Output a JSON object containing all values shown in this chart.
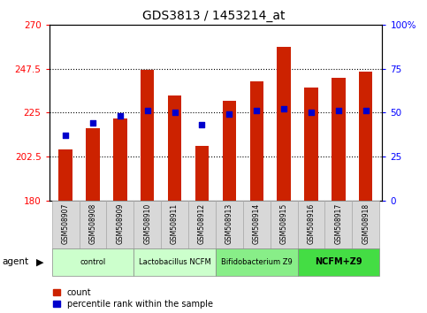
{
  "title": "GDS3813 / 1453214_at",
  "samples": [
    "GSM508907",
    "GSM508908",
    "GSM508909",
    "GSM508910",
    "GSM508911",
    "GSM508912",
    "GSM508913",
    "GSM508914",
    "GSM508915",
    "GSM508916",
    "GSM508917",
    "GSM508918"
  ],
  "counts": [
    206,
    217,
    222,
    247,
    234,
    208,
    231,
    241,
    259,
    238,
    243,
    246
  ],
  "percentiles": [
    37,
    44,
    48,
    51,
    50,
    43,
    49,
    51,
    52,
    50,
    51,
    51
  ],
  "groups": [
    {
      "label": "control",
      "start": 0,
      "end": 3,
      "color": "#ccffcc"
    },
    {
      "label": "Lactobacillus NCFM",
      "start": 3,
      "end": 6,
      "color": "#ccffcc"
    },
    {
      "label": "Bifidobacterium Z9",
      "start": 6,
      "end": 9,
      "color": "#88ee88"
    },
    {
      "label": "NCFM+Z9",
      "start": 9,
      "end": 12,
      "color": "#44dd44"
    }
  ],
  "ylim_left": [
    180,
    270
  ],
  "ylim_right": [
    0,
    100
  ],
  "yticks_left": [
    180,
    202.5,
    225,
    247.5,
    270
  ],
  "yticks_right": [
    0,
    25,
    50,
    75,
    100
  ],
  "ytick_labels_left": [
    "180",
    "202.5",
    "225",
    "247.5",
    "270"
  ],
  "ytick_labels_right": [
    "0",
    "25",
    "50",
    "75",
    "100%"
  ],
  "bar_color": "#cc2200",
  "dot_color": "#0000cc",
  "legend_count_label": "count",
  "legend_pct_label": "percentile rank within the sample",
  "agent_label": "agent",
  "sample_box_color": "#d8d8d8",
  "grid_yticks": [
    202.5,
    225,
    247.5
  ]
}
